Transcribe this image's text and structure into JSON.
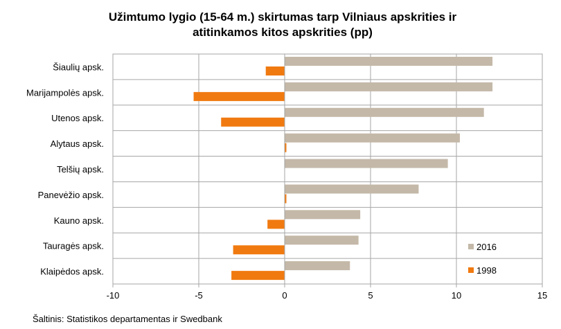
{
  "chart_data": {
    "type": "bar",
    "orientation": "horizontal",
    "title_lines": [
      "Užimtumo lygio (15-64 m.) skirtumas tarp Vilniaus apskrities ir",
      "atitinkamos kitos apskrities (pp)"
    ],
    "categories": [
      "Šiaulių apsk.",
      "Marijampolės apsk.",
      "Utenos apsk.",
      "Alytaus apsk.",
      "Telšių apsk.",
      "Panevėžio apsk.",
      "Kauno apsk.",
      "Tauragės apsk.",
      "Klaipėdos apsk."
    ],
    "series": [
      {
        "name": "2016",
        "color": "#c4b8a8",
        "values": [
          12.1,
          12.1,
          11.6,
          10.2,
          9.5,
          7.8,
          4.4,
          4.3,
          3.8
        ]
      },
      {
        "name": "1998",
        "color": "#f07a10",
        "values": [
          -1.1,
          -5.3,
          -3.7,
          0.1,
          0.0,
          0.1,
          -1.0,
          -3.0,
          -3.1
        ]
      }
    ],
    "xlim": [
      -10,
      15
    ],
    "xticks": [
      "-10",
      "-5",
      "0",
      "5",
      "10",
      "15"
    ],
    "grid": true,
    "legend_position": "bottom-right"
  },
  "source_text": "Šaltinis: Statistikos departamentas ir Swedbank"
}
